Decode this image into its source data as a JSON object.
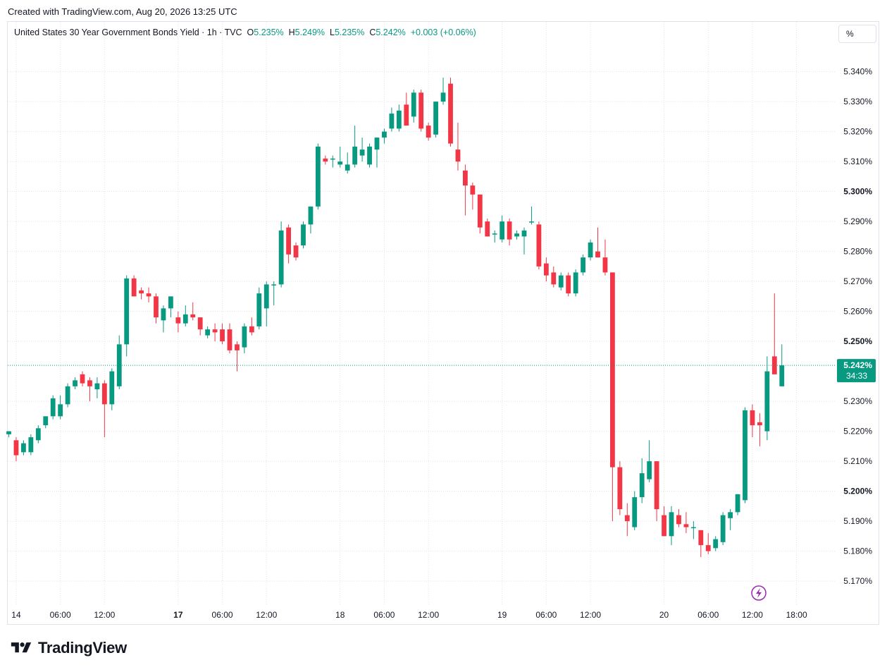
{
  "header": {
    "created": "Created with TradingView.com, Aug 20, 2026 13:25 UTC"
  },
  "legend": {
    "symbol": "United States 30 Year Government Bonds Yield · 1h · TVC",
    "o_label": "O",
    "o_value": "5.235%",
    "h_label": "H",
    "h_value": "5.249%",
    "l_label": "L",
    "l_value": "5.235%",
    "c_label": "C",
    "c_value": "5.242%",
    "change": "+0.003 (+0.06%)"
  },
  "scale_button": "%",
  "logo": {
    "text": "TradingView"
  },
  "colors": {
    "up": "#089981",
    "down": "#f23645",
    "grid": "#e0e3eb",
    "text": "#131722",
    "lightning": "#9c27b0"
  },
  "chart_data": {
    "type": "candlestick",
    "title": "United States 30 Year Government Bonds Yield",
    "interval": "1h",
    "source": "TVC",
    "ylim": [
      5.163,
      5.352
    ],
    "y_ticks": [
      "5.340%",
      "5.330%",
      "5.320%",
      "5.310%",
      "5.300%",
      "5.290%",
      "5.280%",
      "5.270%",
      "5.260%",
      "5.250%",
      "5.230%",
      "5.220%",
      "5.210%",
      "5.200%",
      "5.190%",
      "5.180%",
      "5.170%"
    ],
    "y_tick_values": [
      5.34,
      5.33,
      5.32,
      5.31,
      5.3,
      5.29,
      5.28,
      5.27,
      5.26,
      5.25,
      5.23,
      5.22,
      5.21,
      5.2,
      5.19,
      5.18,
      5.17
    ],
    "bold_ticks": [
      "5.300%",
      "5.250%",
      "5.200%"
    ],
    "x_ticks": [
      {
        "label": "14",
        "index": 1,
        "bold": false
      },
      {
        "label": "06:00",
        "index": 7,
        "bold": false
      },
      {
        "label": "12:00",
        "index": 13,
        "bold": false
      },
      {
        "label": "17",
        "index": 23,
        "bold": true
      },
      {
        "label": "06:00",
        "index": 29,
        "bold": false
      },
      {
        "label": "12:00",
        "index": 35,
        "bold": false
      },
      {
        "label": "18",
        "index": 45,
        "bold": false
      },
      {
        "label": "06:00",
        "index": 51,
        "bold": false
      },
      {
        "label": "12:00",
        "index": 57,
        "bold": false
      },
      {
        "label": "19",
        "index": 67,
        "bold": false
      },
      {
        "label": "06:00",
        "index": 73,
        "bold": false
      },
      {
        "label": "12:00",
        "index": 79,
        "bold": false
      },
      {
        "label": "20",
        "index": 89,
        "bold": false
      },
      {
        "label": "06:00",
        "index": 95,
        "bold": false
      },
      {
        "label": "12:00",
        "index": 101,
        "bold": false
      },
      {
        "label": "18:00",
        "index": 107,
        "bold": false
      }
    ],
    "last_price": {
      "label": "5.242%",
      "countdown": "34:33",
      "value": 5.242
    },
    "candles": [
      [
        5.219,
        5.22,
        5.218,
        5.22
      ],
      [
        5.217,
        5.218,
        5.21,
        5.212
      ],
      [
        5.213,
        5.217,
        5.212,
        5.216
      ],
      [
        5.213,
        5.219,
        5.212,
        5.218
      ],
      [
        5.217,
        5.222,
        5.216,
        5.221
      ],
      [
        5.222,
        5.225,
        5.221,
        5.225
      ],
      [
        5.225,
        5.232,
        5.224,
        5.231
      ],
      [
        5.225,
        5.232,
        5.224,
        5.229
      ],
      [
        5.229,
        5.236,
        5.228,
        5.235
      ],
      [
        5.235,
        5.238,
        5.234,
        5.237
      ],
      [
        5.239,
        5.24,
        5.235,
        5.236
      ],
      [
        5.237,
        5.238,
        5.23,
        5.235
      ],
      [
        5.234,
        5.238,
        5.231,
        5.236
      ],
      [
        5.236,
        5.237,
        5.218,
        5.229
      ],
      [
        5.229,
        5.241,
        5.227,
        5.24
      ],
      [
        5.235,
        5.252,
        5.234,
        5.249
      ],
      [
        5.249,
        5.272,
        5.245,
        5.271
      ],
      [
        5.271,
        5.272,
        5.265,
        5.265
      ],
      [
        5.267,
        5.268,
        5.264,
        5.266
      ],
      [
        5.266,
        5.268,
        5.263,
        5.265
      ],
      [
        5.265,
        5.266,
        5.256,
        5.258
      ],
      [
        5.257,
        5.262,
        5.253,
        5.261
      ],
      [
        5.261,
        5.265,
        5.258,
        5.265
      ],
      [
        5.258,
        5.26,
        5.253,
        5.256
      ],
      [
        5.256,
        5.262,
        5.255,
        5.259
      ],
      [
        5.259,
        5.263,
        5.257,
        5.258
      ],
      [
        5.258,
        5.258,
        5.252,
        5.254
      ],
      [
        5.252,
        5.255,
        5.251,
        5.254
      ],
      [
        5.254,
        5.256,
        5.25,
        5.253
      ],
      [
        5.254,
        5.256,
        5.249,
        5.25
      ],
      [
        5.254,
        5.256,
        5.246,
        5.247
      ],
      [
        5.249,
        5.25,
        5.24,
        5.247
      ],
      [
        5.248,
        5.256,
        5.246,
        5.255
      ],
      [
        5.255,
        5.258,
        5.252,
        5.253
      ],
      [
        5.255,
        5.268,
        5.254,
        5.266
      ],
      [
        5.261,
        5.27,
        5.255,
        5.269
      ],
      [
        5.269,
        5.27,
        5.262,
        5.269
      ],
      [
        5.269,
        5.29,
        5.268,
        5.287
      ],
      [
        5.288,
        5.289,
        5.276,
        5.279
      ],
      [
        5.282,
        5.283,
        5.277,
        5.278
      ],
      [
        5.282,
        5.29,
        5.281,
        5.289
      ],
      [
        5.289,
        5.295,
        5.286,
        5.295
      ],
      [
        5.295,
        5.316,
        5.294,
        5.315
      ],
      [
        5.311,
        5.312,
        5.309,
        5.31
      ],
      [
        5.311,
        5.312,
        5.308,
        5.311
      ],
      [
        5.309,
        5.315,
        5.308,
        5.31
      ],
      [
        5.307,
        5.313,
        5.306,
        5.309
      ],
      [
        5.309,
        5.322,
        5.308,
        5.315
      ],
      [
        5.312,
        5.318,
        5.31,
        5.314
      ],
      [
        5.309,
        5.316,
        5.308,
        5.315
      ],
      [
        5.314,
        5.318,
        5.308,
        5.318
      ],
      [
        5.318,
        5.321,
        5.316,
        5.32
      ],
      [
        5.321,
        5.328,
        5.32,
        5.326
      ],
      [
        5.321,
        5.329,
        5.32,
        5.327
      ],
      [
        5.329,
        5.333,
        5.322,
        5.322
      ],
      [
        5.325,
        5.334,
        5.323,
        5.333
      ],
      [
        5.333,
        5.334,
        5.32,
        5.321
      ],
      [
        5.322,
        5.323,
        5.317,
        5.318
      ],
      [
        5.319,
        5.33,
        5.318,
        5.33
      ],
      [
        5.33,
        5.338,
        5.329,
        5.333
      ],
      [
        5.336,
        5.338,
        5.315,
        5.316
      ],
      [
        5.314,
        5.323,
        5.307,
        5.31
      ],
      [
        5.307,
        5.309,
        5.292,
        5.302
      ],
      [
        5.302,
        5.303,
        5.294,
        5.299
      ],
      [
        5.299,
        5.299,
        5.286,
        5.288
      ],
      [
        5.29,
        5.291,
        5.285,
        5.285
      ],
      [
        5.286,
        5.287,
        5.283,
        5.286
      ],
      [
        5.284,
        5.292,
        5.283,
        5.29
      ],
      [
        5.29,
        5.291,
        5.282,
        5.284
      ],
      [
        5.285,
        5.287,
        5.284,
        5.286
      ],
      [
        5.285,
        5.288,
        5.279,
        5.287
      ],
      [
        5.29,
        5.295,
        5.289,
        5.29
      ],
      [
        5.289,
        5.29,
        5.274,
        5.275
      ],
      [
        5.276,
        5.278,
        5.27,
        5.272
      ],
      [
        5.273,
        5.275,
        5.268,
        5.269
      ],
      [
        5.268,
        5.273,
        5.267,
        5.272
      ],
      [
        5.272,
        5.273,
        5.265,
        5.266
      ],
      [
        5.266,
        5.274,
        5.265,
        5.273
      ],
      [
        5.273,
        5.279,
        5.272,
        5.278
      ],
      [
        5.278,
        5.284,
        5.277,
        5.283
      ],
      [
        5.28,
        5.288,
        5.278,
        5.278
      ],
      [
        5.278,
        5.284,
        5.272,
        5.273
      ],
      [
        5.273,
        5.273,
        5.19,
        5.208
      ],
      [
        5.208,
        5.21,
        5.192,
        5.194
      ],
      [
        5.192,
        5.196,
        5.185,
        5.19
      ],
      [
        5.188,
        5.2,
        5.187,
        5.198
      ],
      [
        5.198,
        5.211,
        5.196,
        5.206
      ],
      [
        5.204,
        5.217,
        5.203,
        5.21
      ],
      [
        5.21,
        5.21,
        5.19,
        5.194
      ],
      [
        5.192,
        5.195,
        5.186,
        5.185
      ],
      [
        5.185,
        5.195,
        5.182,
        5.193
      ],
      [
        5.192,
        5.194,
        5.188,
        5.189
      ],
      [
        5.189,
        5.193,
        5.186,
        5.188
      ],
      [
        5.188,
        5.19,
        5.184,
        5.188
      ],
      [
        5.187,
        5.187,
        5.178,
        5.182
      ],
      [
        5.182,
        5.186,
        5.179,
        5.18
      ],
      [
        5.181,
        5.185,
        5.18,
        5.184
      ],
      [
        5.183,
        5.193,
        5.182,
        5.192
      ],
      [
        5.191,
        5.194,
        5.187,
        5.193
      ],
      [
        5.193,
        5.199,
        5.192,
        5.199
      ],
      [
        5.197,
        5.228,
        5.196,
        5.227
      ],
      [
        5.227,
        5.229,
        5.218,
        5.222
      ],
      [
        5.223,
        5.226,
        5.215,
        5.222
      ],
      [
        5.22,
        5.245,
        5.217,
        5.24
      ],
      [
        5.245,
        5.266,
        5.24,
        5.239
      ],
      [
        5.235,
        5.249,
        5.235,
        5.242
      ]
    ]
  }
}
